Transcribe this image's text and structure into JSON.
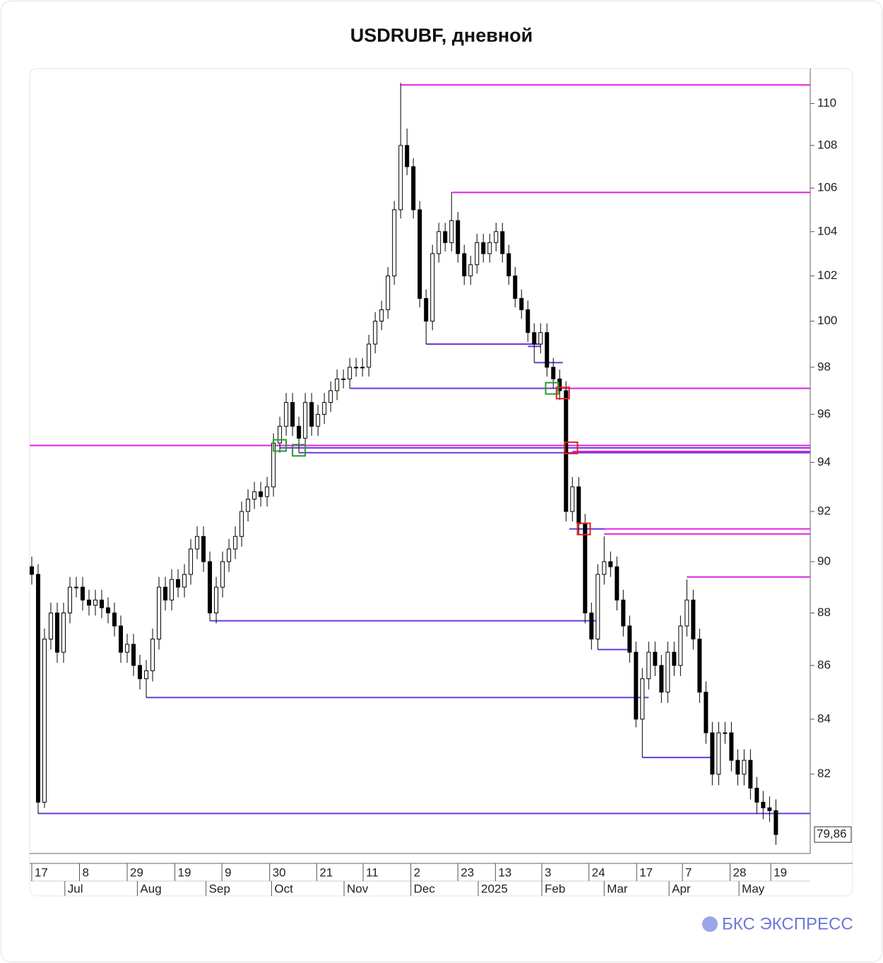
{
  "chart_data": {
    "type": "candlestick",
    "title": "USDRUBF, дневной",
    "log_scale": true,
    "ylim": [
      79.2,
      111.7
    ],
    "xlim": [
      -0.33,
      122.4
    ],
    "yticks": [
      82,
      84,
      86,
      88,
      90,
      92,
      94,
      96,
      98,
      100,
      102,
      104,
      106,
      108,
      110
    ],
    "last_price": {
      "value": 79.86,
      "label": "79,86"
    },
    "up_color": "#ffffff",
    "down_color": "#000000",
    "xticks": [
      {
        "value": 0,
        "label": "17"
      },
      {
        "value": 7.5,
        "label": "8"
      },
      {
        "value": 15,
        "label": "29"
      },
      {
        "value": 22.5,
        "label": "19"
      },
      {
        "value": 29.9,
        "label": "9"
      },
      {
        "value": 37.4,
        "label": "30"
      },
      {
        "value": 44.8,
        "label": "21"
      },
      {
        "value": 52.1,
        "label": "11"
      },
      {
        "value": 59.6,
        "label": "2"
      },
      {
        "value": 67,
        "label": "23"
      },
      {
        "value": 72.9,
        "label": "13"
      },
      {
        "value": 80.2,
        "label": "3"
      },
      {
        "value": 87.6,
        "label": "24"
      },
      {
        "value": 95.1,
        "label": "17"
      },
      {
        "value": 102.3,
        "label": "7"
      },
      {
        "value": 109.8,
        "label": "28"
      },
      {
        "value": 116.2,
        "label": "19"
      }
    ],
    "xticks_month": [
      {
        "value": 5.2,
        "label": "Jul"
      },
      {
        "value": 16.6,
        "label": "Aug"
      },
      {
        "value": 27.4,
        "label": "Sep"
      },
      {
        "value": 37.7,
        "label": "Oct"
      },
      {
        "value": 49.1,
        "label": "Nov"
      },
      {
        "value": 59.6,
        "label": "Dec"
      },
      {
        "value": 70.2,
        "label": "2025"
      },
      {
        "value": 80.2,
        "label": "Feb"
      },
      {
        "value": 90,
        "label": "Mar"
      },
      {
        "value": 100.2,
        "label": "Apr"
      },
      {
        "value": 111.2,
        "label": "May"
      }
    ],
    "open": [
      89.8,
      89.5,
      81,
      87,
      88,
      86.5,
      88,
      89,
      89,
      88.5,
      88.3,
      88.5,
      88.2,
      88,
      87.5,
      86.5,
      86.8,
      86,
      85.5,
      85.8,
      87,
      89,
      88.5,
      89.3,
      89,
      89.5,
      90.5,
      91,
      90,
      88,
      89,
      90,
      90.5,
      91,
      92,
      92.5,
      92.8,
      92.6,
      93,
      94.8,
      95.5,
      96.5,
      95.5,
      95,
      96.5,
      95.5,
      96,
      96.5,
      97,
      97.5,
      97.5,
      98,
      98,
      98,
      99,
      100,
      100.5,
      102,
      105,
      108,
      107,
      105,
      101,
      100,
      103,
      104,
      103.5,
      104.5,
      103,
      102,
      102.5,
      103.5,
      103,
      103.5,
      104,
      103,
      102,
      101,
      100.5,
      99.5,
      99,
      99.5,
      98,
      97.5,
      97,
      92,
      93,
      91.5,
      88,
      87,
      89.5,
      90,
      89.8,
      88.5,
      87.5,
      86.5,
      84,
      85.5,
      86.5,
      86,
      85,
      86.5,
      86,
      87.5,
      88.5,
      87,
      85,
      83.5,
      82,
      83.5,
      83.5,
      82.5,
      82,
      82.5,
      81.5,
      81,
      80.8,
      80.7
    ],
    "high": [
      90.2,
      89.9,
      87.4,
      88.4,
      88.4,
      88.4,
      89.4,
      89.4,
      89.4,
      88.9,
      88.9,
      88.9,
      88.6,
      88.4,
      87.9,
      87.2,
      87.2,
      86.4,
      86.2,
      87.4,
      89.4,
      89.4,
      89.7,
      89.7,
      89.9,
      90.9,
      91.4,
      91.4,
      90.4,
      89.4,
      90.4,
      90.9,
      91.4,
      92.4,
      92.9,
      93.2,
      93.2,
      93.4,
      95.2,
      95.9,
      96.9,
      96.9,
      95.9,
      96.9,
      96.9,
      96.4,
      96.9,
      97.4,
      97.9,
      97.9,
      98.4,
      98.4,
      98.4,
      99.4,
      100.4,
      100.9,
      102.4,
      105.4,
      111,
      108.8,
      107.4,
      105.4,
      101.4,
      103.4,
      104.4,
      104.4,
      105.8,
      104.9,
      103.4,
      102.9,
      103.9,
      103.9,
      103.9,
      104.4,
      104.4,
      103.4,
      102.4,
      101.4,
      100.9,
      99.9,
      99.9,
      99.9,
      98.4,
      97.9,
      97.4,
      93.4,
      93.4,
      91.9,
      88.4,
      89.9,
      91,
      90.4,
      90.2,
      88.9,
      87.9,
      86.9,
      85.9,
      86.9,
      86.9,
      86.4,
      86.9,
      86.9,
      87.9,
      89.3,
      88.9,
      87.4,
      85.4,
      83.9,
      83.9,
      83.9,
      83.9,
      82.9,
      82.9,
      82.9,
      81.9,
      81.4,
      81.2,
      81.1
    ],
    "low": [
      89.1,
      80.6,
      80.8,
      86.6,
      86.1,
      86.1,
      87.6,
      88.6,
      88.1,
      87.9,
      87.9,
      87.8,
      87.6,
      87.1,
      86.1,
      86.1,
      85.6,
      85.1,
      84.8,
      85.4,
      86.6,
      88.1,
      88.1,
      88.6,
      88.6,
      89.1,
      90.1,
      89.6,
      87.7,
      87.6,
      88.6,
      89.6,
      90.1,
      90.6,
      91.6,
      92.1,
      92.2,
      92.2,
      92.6,
      94.4,
      95.1,
      95.1,
      94.4,
      94.6,
      95.1,
      95.1,
      95.6,
      96.1,
      96.6,
      97.1,
      97.1,
      97.6,
      97.6,
      97.6,
      98.6,
      99.6,
      100.1,
      101.6,
      104.6,
      106.6,
      104.6,
      100.6,
      99,
      99.6,
      102.6,
      103.1,
      103.1,
      102.6,
      101.6,
      101.6,
      102.1,
      102.6,
      102.6,
      103.1,
      102.6,
      101.6,
      100.6,
      100.1,
      99.1,
      98.2,
      98.6,
      97.6,
      97.1,
      96.6,
      91.6,
      91.6,
      91.1,
      87.6,
      86.6,
      86.6,
      89.1,
      89.4,
      88.1,
      87.1,
      86.1,
      83.7,
      82.6,
      85.1,
      85.6,
      84.6,
      84.6,
      85.6,
      85.6,
      87.1,
      86.6,
      84.6,
      83.1,
      81.6,
      81.6,
      83.1,
      82.1,
      81.6,
      81.6,
      81.1,
      80.6,
      80.4,
      80.3,
      79.5
    ],
    "close": [
      89.5,
      81,
      87,
      88,
      86.5,
      88,
      89,
      89,
      88.5,
      88.3,
      88.5,
      88.2,
      88,
      87.5,
      86.5,
      86.8,
      86,
      85.5,
      85.8,
      87,
      89,
      88.5,
      89.3,
      89,
      89.5,
      90.5,
      91,
      90,
      88,
      89,
      90,
      90.5,
      91,
      92,
      92.5,
      92.8,
      92.6,
      93,
      94.8,
      95.5,
      96.5,
      95.5,
      95,
      96.5,
      95.5,
      96,
      96.5,
      97,
      97.5,
      97.5,
      98,
      98,
      98,
      99,
      100,
      100.5,
      102,
      105,
      108,
      107,
      105,
      101,
      100,
      103,
      104,
      103.5,
      104.5,
      103,
      102,
      102.5,
      103.5,
      103,
      103.5,
      104,
      103,
      102,
      101,
      100.5,
      99.5,
      99,
      99.5,
      98,
      97.5,
      97,
      92,
      93,
      91.5,
      88,
      87,
      89.5,
      90,
      89.8,
      88.5,
      87.5,
      86.5,
      84,
      85.5,
      86.5,
      86,
      85,
      86.5,
      86,
      87.5,
      88.5,
      87,
      85,
      83.5,
      82,
      83.5,
      83.5,
      82.5,
      82,
      82.5,
      81.5,
      81,
      80.8,
      80.7,
      79.86
    ],
    "levels": [
      {
        "value": 110.9,
        "from": 58,
        "to": 122.4,
        "color": "#e020e0"
      },
      {
        "value": 105.8,
        "from": 66,
        "to": 122.4,
        "color": "#e020e0"
      },
      {
        "value": 97.1,
        "from": 83,
        "to": 122.4,
        "color": "#e020e0"
      },
      {
        "value": 94.7,
        "from": -0.33,
        "to": 122.4,
        "color": "#e020e0"
      },
      {
        "value": 94.6,
        "from": 39,
        "to": 122.4,
        "color": "#6a3ad8"
      },
      {
        "value": 94.45,
        "from": 85,
        "to": 122.4,
        "color": "#e020e0"
      },
      {
        "value": 94.4,
        "from": 42,
        "to": 122.4,
        "color": "#6a3ad8"
      },
      {
        "value": 91.3,
        "from": 86,
        "to": 122.4,
        "color": "#e020e0"
      },
      {
        "value": 91.1,
        "from": 90,
        "to": 122.4,
        "color": "#e020e0"
      },
      {
        "value": 89.4,
        "from": 103,
        "to": 122.4,
        "color": "#e020e0"
      },
      {
        "value": 99,
        "from": 62,
        "to": 80,
        "color": "#6a3ad8"
      },
      {
        "value": 98.9,
        "from": 78,
        "to": 80,
        "color": "#6a3ad8"
      },
      {
        "value": 98.2,
        "from": 79,
        "to": 83.5,
        "color": "#6a3ad8"
      },
      {
        "value": 97.1,
        "from": 50,
        "to": 83,
        "color": "#6a3ad8"
      },
      {
        "value": 91.3,
        "from": 84.5,
        "to": 90,
        "color": "#6a3ad8"
      },
      {
        "value": 87.7,
        "from": 28,
        "to": 89,
        "color": "#6a3ad8"
      },
      {
        "value": 86.6,
        "from": 89,
        "to": 94,
        "color": "#6a3ad8"
      },
      {
        "value": 84.8,
        "from": 18,
        "to": 97,
        "color": "#6a3ad8"
      },
      {
        "value": 82.6,
        "from": 96,
        "to": 107,
        "color": "#6a3ad8"
      },
      {
        "value": 80.6,
        "from": 1,
        "to": 122.4,
        "color": "#6a3ad8"
      }
    ],
    "signals": [
      {
        "index": 39,
        "value": 94.7,
        "color": "#2a9a2a"
      },
      {
        "index": 42,
        "value": 94.5,
        "color": "#2a9a2a"
      },
      {
        "index": 81.8,
        "value": 97.1,
        "color": "#2a9a2a"
      },
      {
        "index": 83.5,
        "value": 96.9,
        "color": "#e02020"
      },
      {
        "index": 84.8,
        "value": 94.6,
        "color": "#e02020"
      },
      {
        "index": 86.8,
        "value": 91.3,
        "color": "#e02020"
      }
    ]
  },
  "brand": "БКС ЭКСПРЕСС"
}
